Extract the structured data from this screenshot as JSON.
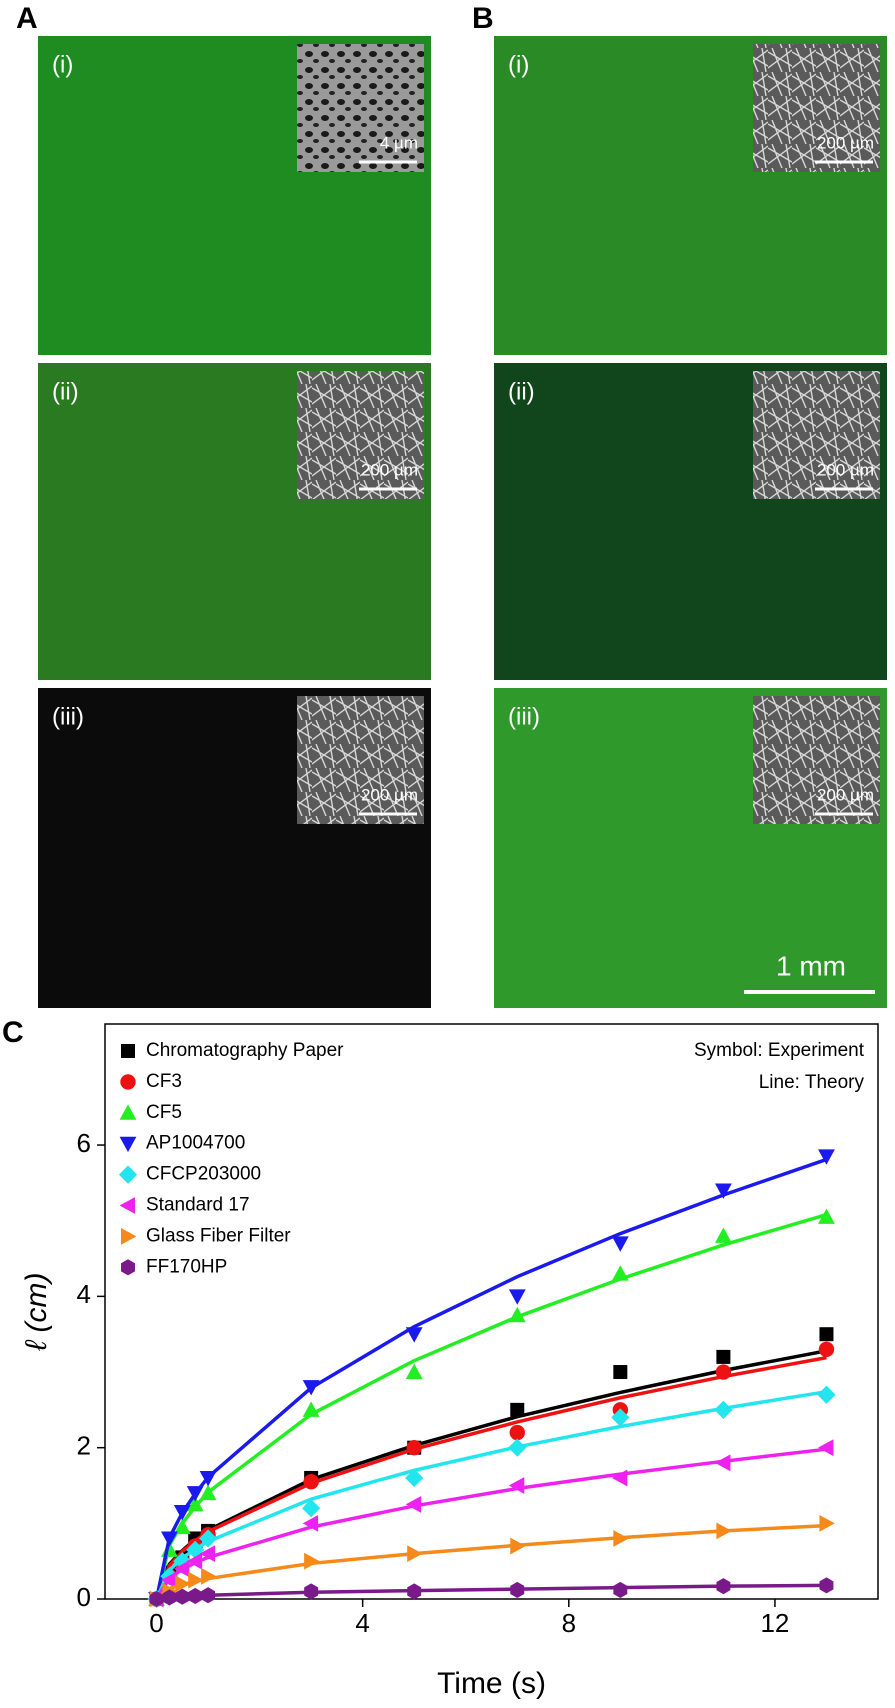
{
  "panels": {
    "A": {
      "label": "A",
      "images": [
        {
          "label": "(i)",
          "scale": "4 µm"
        },
        {
          "label": "(ii)",
          "scale": "200 µm"
        },
        {
          "label": "(iii)",
          "scale": "200 µm"
        }
      ]
    },
    "B": {
      "label": "B",
      "images": [
        {
          "label": "(i)",
          "scale": "200 µm"
        },
        {
          "label": "(ii)",
          "scale": "200 µm"
        },
        {
          "label": "(iii)",
          "scale": "200 µm"
        }
      ],
      "scale_bar": "1 mm"
    },
    "C": {
      "label": "C"
    }
  },
  "chart_data": {
    "type": "scatter",
    "x_label": "Time (s)",
    "y_label": "ℓ (cm)",
    "annotations": [
      "Symbol: Experiment",
      "Line: Theory"
    ],
    "x": [
      0,
      0.25,
      0.5,
      0.75,
      1,
      3,
      5,
      7,
      9,
      11,
      13
    ],
    "xlim": [
      -1,
      14
    ],
    "xticks": [
      0,
      4,
      8,
      12
    ],
    "ylim": [
      0,
      7.6
    ],
    "yticks": [
      0,
      2,
      4,
      6
    ],
    "legend": "top-left",
    "series": [
      {
        "name": "Chromatography Paper",
        "color": "#000000",
        "marker": "square",
        "values": [
          0,
          0.35,
          0.55,
          0.8,
          0.9,
          1.6,
          2.0,
          2.5,
          3.0,
          3.2,
          3.5
        ],
        "theory": [
          0,
          0.46,
          0.64,
          0.79,
          0.91,
          1.58,
          2.03,
          2.41,
          2.73,
          3.02,
          3.28
        ]
      },
      {
        "name": "CF3",
        "color": "#ee1111",
        "marker": "circle",
        "values": [
          0,
          0.3,
          0.5,
          0.7,
          0.85,
          1.55,
          2.0,
          2.2,
          2.5,
          3.0,
          3.3
        ],
        "theory": [
          0,
          0.44,
          0.63,
          0.77,
          0.89,
          1.53,
          1.98,
          2.34,
          2.66,
          2.94,
          3.19
        ]
      },
      {
        "name": "CF5",
        "color": "#22ee22",
        "marker": "triangle-up",
        "values": [
          0,
          0.65,
          0.95,
          1.25,
          1.4,
          2.5,
          3.0,
          3.75,
          4.3,
          4.8,
          5.05
        ],
        "theory": [
          0,
          0.71,
          1.0,
          1.22,
          1.41,
          2.44,
          3.15,
          3.73,
          4.23,
          4.68,
          5.08
        ]
      },
      {
        "name": "AP1004700",
        "color": "#1a1aee",
        "marker": "triangle-down",
        "values": [
          0,
          0.8,
          1.15,
          1.4,
          1.6,
          2.8,
          3.5,
          4.0,
          4.7,
          5.4,
          5.85
        ],
        "theory": [
          0,
          0.81,
          1.14,
          1.39,
          1.61,
          2.79,
          3.6,
          4.26,
          4.83,
          5.34,
          5.81
        ]
      },
      {
        "name": "CFCP203000",
        "color": "#22e5ee",
        "marker": "diamond",
        "values": [
          0,
          0.3,
          0.5,
          0.65,
          0.8,
          1.2,
          1.6,
          2.0,
          2.4,
          2.5,
          2.7
        ],
        "theory": [
          0,
          0.38,
          0.54,
          0.66,
          0.76,
          1.32,
          1.7,
          2.01,
          2.28,
          2.52,
          2.74
        ]
      },
      {
        "name": "Standard 17",
        "color": "#ee22ee",
        "marker": "triangle-left",
        "values": [
          0,
          0.25,
          0.4,
          0.5,
          0.6,
          1.0,
          1.25,
          1.5,
          1.6,
          1.8,
          2.0
        ],
        "theory": [
          0,
          0.28,
          0.39,
          0.48,
          0.55,
          0.95,
          1.23,
          1.46,
          1.65,
          1.82,
          1.98
        ]
      },
      {
        "name": "Glass Fiber Filter",
        "color": "#f58a1a",
        "marker": "triangle-right",
        "values": [
          0,
          0.1,
          0.2,
          0.25,
          0.3,
          0.5,
          0.6,
          0.7,
          0.8,
          0.9,
          1.0
        ],
        "theory": [
          0,
          0.14,
          0.19,
          0.23,
          0.27,
          0.47,
          0.6,
          0.71,
          0.81,
          0.9,
          0.97
        ]
      },
      {
        "name": "FF170HP",
        "color": "#7a1a8a",
        "marker": "hexagon",
        "values": [
          0,
          0.02,
          0.03,
          0.04,
          0.05,
          0.1,
          0.1,
          0.12,
          0.12,
          0.17,
          0.18
        ],
        "theory": [
          0,
          0.03,
          0.04,
          0.04,
          0.05,
          0.09,
          0.11,
          0.13,
          0.15,
          0.17,
          0.18
        ]
      }
    ]
  }
}
